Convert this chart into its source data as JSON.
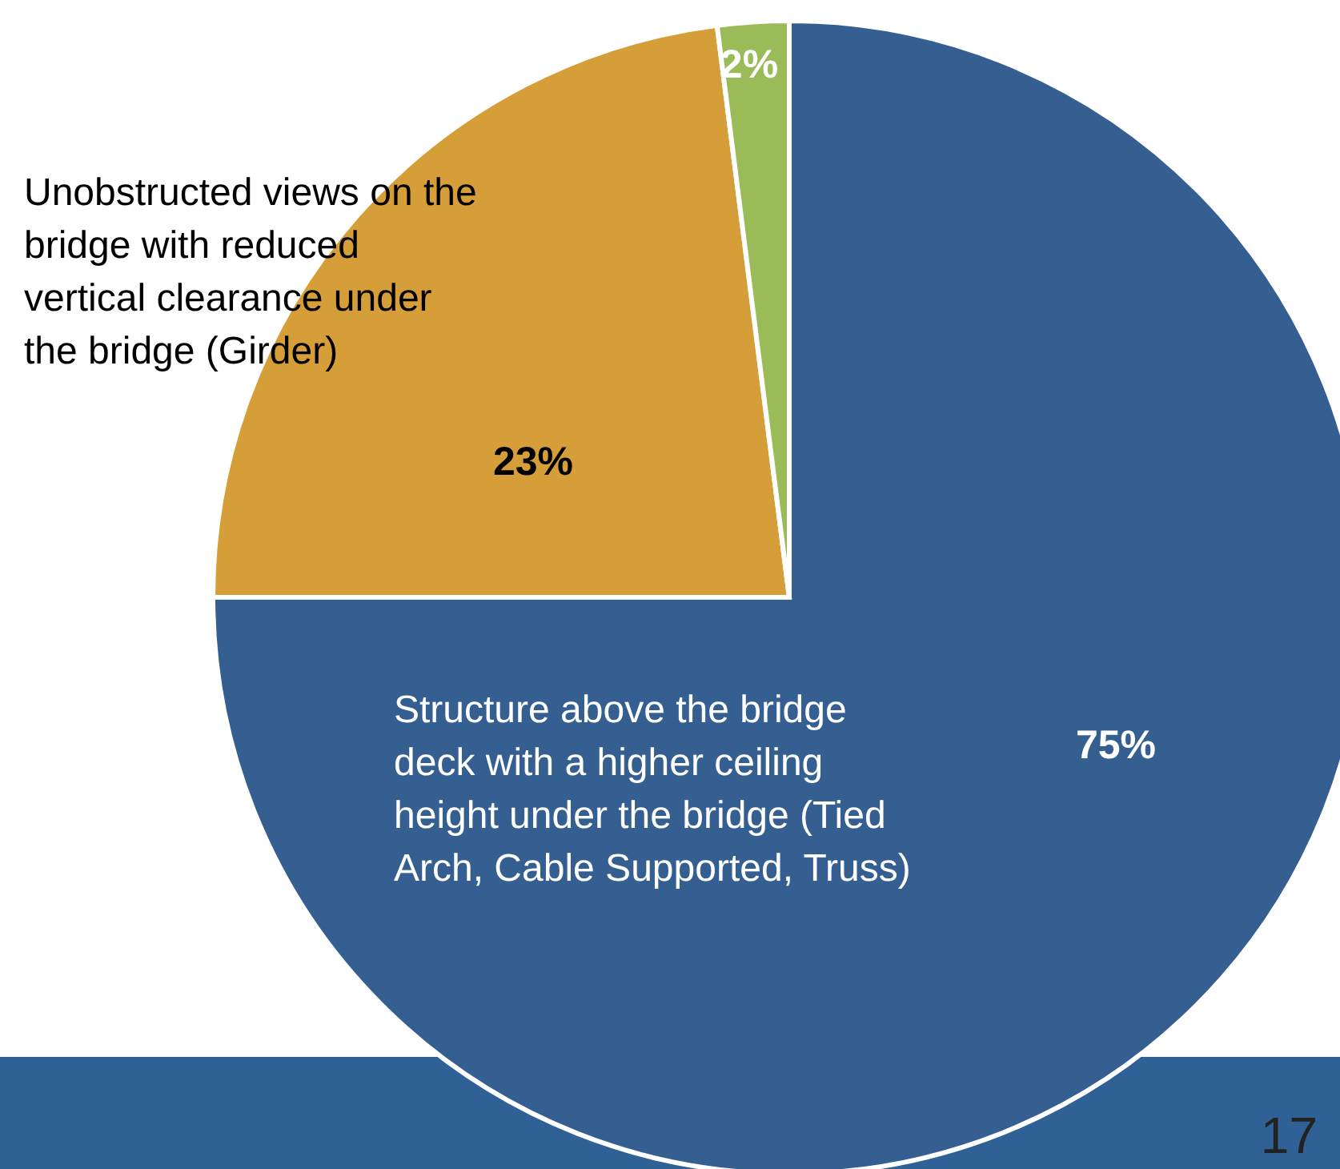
{
  "chart_data": {
    "type": "pie",
    "categories": [
      "Structure above the bridge deck with a higher ceiling height under the bridge (Tied Arch, Cable Supported, Truss)",
      "Unobstructed views on the bridge with reduced vertical clearance under the bridge (Girder)",
      null
    ],
    "values": [
      75,
      23,
      2
    ],
    "colors": [
      "#355f91",
      "#d69e38",
      "#9bbb59"
    ],
    "value_labels": [
      "75%",
      "23%",
      "2%"
    ],
    "annotations": [
      "17"
    ]
  }
}
